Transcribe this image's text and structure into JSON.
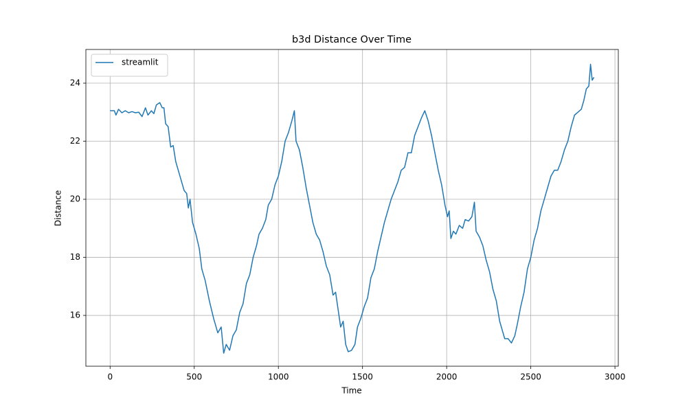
{
  "chart_data": {
    "type": "line",
    "title": "b3d Distance Over Time",
    "x_label": "Time",
    "y_label": "Distance",
    "x": [
      0,
      25,
      35,
      50,
      70,
      90,
      110,
      130,
      150,
      170,
      190,
      210,
      225,
      245,
      260,
      275,
      295,
      310,
      320,
      330,
      345,
      360,
      375,
      390,
      405,
      420,
      440,
      455,
      465,
      475,
      490,
      510,
      530,
      545,
      565,
      590,
      615,
      640,
      660,
      675,
      690,
      710,
      730,
      750,
      770,
      790,
      810,
      830,
      850,
      870,
      885,
      905,
      925,
      940,
      960,
      980,
      1000,
      1020,
      1040,
      1060,
      1080,
      1095,
      1105,
      1125,
      1145,
      1165,
      1185,
      1205,
      1225,
      1245,
      1265,
      1285,
      1305,
      1325,
      1340,
      1355,
      1370,
      1385,
      1400,
      1415,
      1435,
      1455,
      1470,
      1490,
      1510,
      1530,
      1550,
      1570,
      1590,
      1610,
      1630,
      1650,
      1670,
      1690,
      1710,
      1730,
      1750,
      1770,
      1790,
      1810,
      1830,
      1850,
      1870,
      1890,
      1910,
      1930,
      1950,
      1970,
      1990,
      2005,
      2015,
      2025,
      2040,
      2055,
      2075,
      2095,
      2110,
      2130,
      2150,
      2165,
      2175,
      2195,
      2215,
      2235,
      2255,
      2275,
      2295,
      2315,
      2330,
      2345,
      2365,
      2385,
      2405,
      2420,
      2440,
      2460,
      2480,
      2500,
      2520,
      2540,
      2560,
      2580,
      2600,
      2620,
      2640,
      2660,
      2680,
      2700,
      2720,
      2740,
      2760,
      2780,
      2800,
      2815,
      2830,
      2845,
      2855,
      2865,
      2875
    ],
    "series": [
      {
        "name": "streamlit",
        "color": "#1f77b4",
        "values": [
          23.05,
          23.05,
          22.9,
          23.1,
          22.98,
          23.05,
          22.98,
          23.02,
          22.98,
          23.0,
          22.85,
          23.15,
          22.9,
          23.05,
          22.95,
          23.25,
          23.33,
          23.15,
          23.15,
          22.6,
          22.5,
          21.8,
          21.85,
          21.3,
          21.0,
          20.7,
          20.3,
          20.2,
          19.7,
          20.0,
          19.2,
          18.8,
          18.3,
          17.6,
          17.2,
          16.5,
          15.9,
          15.4,
          15.6,
          14.7,
          15.0,
          14.8,
          15.3,
          15.5,
          16.1,
          16.4,
          17.1,
          17.4,
          18.0,
          18.4,
          18.8,
          19.0,
          19.3,
          19.8,
          20.0,
          20.5,
          20.8,
          21.3,
          22.0,
          22.3,
          22.7,
          23.05,
          22.0,
          21.7,
          21.1,
          20.4,
          19.8,
          19.2,
          18.8,
          18.6,
          18.2,
          17.7,
          17.4,
          16.7,
          16.8,
          16.2,
          15.6,
          15.8,
          15.0,
          14.75,
          14.8,
          15.0,
          15.6,
          15.9,
          16.3,
          16.6,
          17.3,
          17.6,
          18.2,
          18.7,
          19.2,
          19.6,
          20.0,
          20.3,
          20.6,
          21.0,
          21.1,
          21.6,
          21.6,
          22.2,
          22.5,
          22.8,
          23.05,
          22.7,
          22.2,
          21.6,
          21.0,
          20.5,
          19.8,
          19.4,
          19.6,
          18.65,
          18.9,
          18.8,
          19.1,
          19.0,
          19.3,
          19.25,
          19.4,
          19.9,
          18.9,
          18.7,
          18.4,
          17.9,
          17.5,
          16.9,
          16.5,
          15.8,
          15.5,
          15.2,
          15.2,
          15.05,
          15.3,
          15.7,
          16.3,
          16.8,
          17.6,
          18.0,
          18.6,
          19.0,
          19.6,
          20.0,
          20.4,
          20.8,
          21.0,
          21.0,
          21.3,
          21.7,
          22.0,
          22.5,
          22.9,
          23.0,
          23.1,
          23.4,
          23.8,
          23.9,
          24.65,
          24.1,
          24.2
        ]
      }
    ],
    "xlim": [
      -144,
      3020
    ],
    "ylim": [
      14.25,
      25.16
    ],
    "xticks": [
      0,
      500,
      1000,
      1500,
      2000,
      2500,
      3000
    ],
    "yticks": [
      16,
      18,
      20,
      22,
      24
    ],
    "grid": true,
    "legend": "upper left"
  }
}
